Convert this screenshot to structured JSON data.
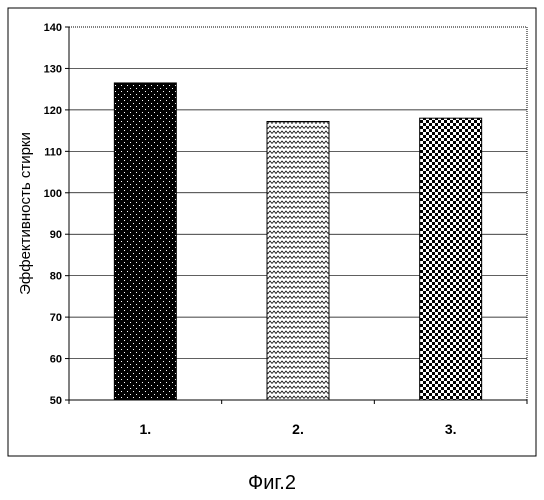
{
  "chart_data": {
    "type": "bar",
    "categories": [
      "1.",
      "2.",
      "3."
    ],
    "values": [
      126.5,
      117.2,
      118.0
    ],
    "ylabel": "Эффективность стирки",
    "xlabel": "",
    "ylim": [
      50,
      140
    ],
    "yticks": [
      50,
      60,
      70,
      80,
      90,
      100,
      110,
      120,
      130,
      140
    ],
    "grid": true,
    "legend": "none",
    "bar_patterns": [
      "dots-on-black",
      "zigzag",
      "checker"
    ]
  },
  "caption": "Фиг.2"
}
